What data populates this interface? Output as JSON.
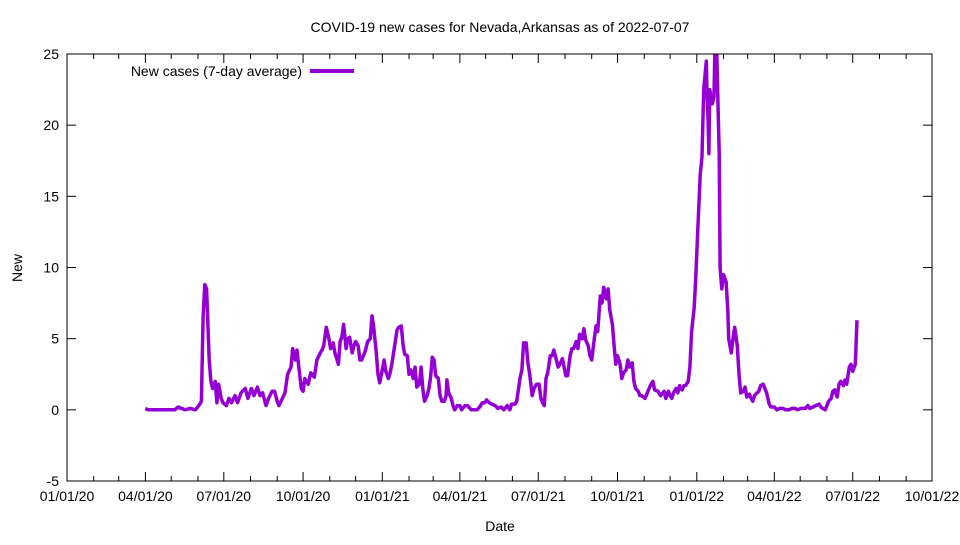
{
  "chart_data": {
    "type": "line",
    "title": "COVID-19 new cases for Nevada,Arkansas as of 2022-07-07",
    "xlabel": "Date",
    "ylabel": "New",
    "x_unit": "days since 01/01/20",
    "xlim": [
      0,
      1004
    ],
    "ylim": [
      -5,
      25
    ],
    "yticks": [
      -5,
      0,
      5,
      10,
      15,
      20,
      25
    ],
    "xticks": [
      {
        "day": 0,
        "label": "01/01/20"
      },
      {
        "day": 91,
        "label": "04/01/20"
      },
      {
        "day": 182,
        "label": "07/01/20"
      },
      {
        "day": 274,
        "label": "10/01/20"
      },
      {
        "day": 366,
        "label": "01/01/21"
      },
      {
        "day": 456,
        "label": "04/01/21"
      },
      {
        "day": 547,
        "label": "07/01/21"
      },
      {
        "day": 639,
        "label": "10/01/21"
      },
      {
        "day": 731,
        "label": "01/01/22"
      },
      {
        "day": 821,
        "label": "04/01/22"
      },
      {
        "day": 912,
        "label": "07/01/22"
      },
      {
        "day": 1004,
        "label": "10/01/22"
      }
    ],
    "grid": false,
    "legend": "top-left",
    "series": [
      {
        "name": "New cases (7-day average)",
        "color": "#9400d3",
        "points": [
          [
            91,
            0.1
          ],
          [
            94,
            0
          ],
          [
            125,
            0
          ],
          [
            129,
            0.2
          ],
          [
            133,
            0.1
          ],
          [
            137,
            0
          ],
          [
            143,
            0.1
          ],
          [
            149,
            0
          ],
          [
            153,
            0.3
          ],
          [
            156,
            0.6
          ],
          [
            158,
            6.5
          ],
          [
            160,
            8.8
          ],
          [
            162,
            8.5
          ],
          [
            165,
            3.5
          ],
          [
            167,
            2
          ],
          [
            169,
            1.5
          ],
          [
            172,
            2
          ],
          [
            174,
            0.5
          ],
          [
            176,
            1.8
          ],
          [
            179,
            0.8
          ],
          [
            181,
            0.5
          ],
          [
            185,
            0.3
          ],
          [
            188,
            0.8
          ],
          [
            191,
            0.5
          ],
          [
            195,
            1
          ],
          [
            198,
            0.5
          ],
          [
            202,
            1.2
          ],
          [
            207,
            1.5
          ],
          [
            210,
            0.8
          ],
          [
            214,
            1.5
          ],
          [
            217,
            1.0
          ],
          [
            221,
            1.6
          ],
          [
            224,
            1.0
          ],
          [
            227,
            1.2
          ],
          [
            231,
            0.3
          ],
          [
            234,
            0.8
          ],
          [
            238,
            1.3
          ],
          [
            241,
            1.3
          ],
          [
            244,
            0.6
          ],
          [
            246,
            0.3
          ],
          [
            250,
            0.8
          ],
          [
            253,
            1.2
          ],
          [
            256,
            2.5
          ],
          [
            260,
            3
          ],
          [
            262,
            4.3
          ],
          [
            265,
            3.5
          ],
          [
            267,
            4.2
          ],
          [
            269,
            3
          ],
          [
            272,
            1.5
          ],
          [
            274,
            1.3
          ],
          [
            276,
            2.2
          ],
          [
            280,
            1.8
          ],
          [
            283,
            2.6
          ],
          [
            287,
            2.3
          ],
          [
            290,
            3.5
          ],
          [
            294,
            4
          ],
          [
            296,
            4.2
          ],
          [
            298,
            4.5
          ],
          [
            301,
            5.8
          ],
          [
            304,
            5
          ],
          [
            306,
            4.3
          ],
          [
            309,
            4.7
          ],
          [
            311,
            4
          ],
          [
            315,
            3.2
          ],
          [
            317,
            4.8
          ],
          [
            319,
            5.1
          ],
          [
            321,
            6
          ],
          [
            324,
            4.3
          ],
          [
            326,
            5
          ],
          [
            328,
            5.1
          ],
          [
            331,
            4
          ],
          [
            333,
            4.5
          ],
          [
            335,
            4.8
          ],
          [
            338,
            4.5
          ],
          [
            340,
            3.5
          ],
          [
            342,
            3.5
          ],
          [
            346,
            4.1
          ],
          [
            349,
            4.8
          ],
          [
            352,
            5
          ],
          [
            354,
            6.6
          ],
          [
            356,
            5.8
          ],
          [
            359,
            4
          ],
          [
            361,
            2.5
          ],
          [
            363,
            1.9
          ],
          [
            366,
            2.8
          ],
          [
            368,
            3.5
          ],
          [
            370,
            2.7
          ],
          [
            373,
            2.2
          ],
          [
            375,
            2.6
          ],
          [
            377,
            3.2
          ],
          [
            381,
            4.8
          ],
          [
            383,
            5.6
          ],
          [
            385,
            5.8
          ],
          [
            388,
            5.9
          ],
          [
            390,
            4.6
          ],
          [
            392,
            3.9
          ],
          [
            395,
            3.8
          ],
          [
            397,
            2.5
          ],
          [
            399,
            2.8
          ],
          [
            402,
            2.2
          ],
          [
            404,
            3
          ],
          [
            406,
            1.6
          ],
          [
            409,
            1.8
          ],
          [
            411,
            3
          ],
          [
            413,
            1.5
          ],
          [
            415,
            0.6
          ],
          [
            418,
            1.0
          ],
          [
            420,
            1.5
          ],
          [
            422,
            2.3
          ],
          [
            424,
            3.7
          ],
          [
            426,
            3.5
          ],
          [
            428,
            2.4
          ],
          [
            431,
            2.2
          ],
          [
            433,
            1.0
          ],
          [
            435,
            0.6
          ],
          [
            438,
            0.6
          ],
          [
            440,
            1.0
          ],
          [
            441,
            2.1
          ],
          [
            443,
            1.2
          ],
          [
            446,
            0.8
          ],
          [
            448,
            0.3
          ],
          [
            450,
            0
          ],
          [
            453,
            0.3
          ],
          [
            456,
            0.3
          ],
          [
            458,
            0
          ],
          [
            462,
            0.3
          ],
          [
            465,
            0.3
          ],
          [
            469,
            0
          ],
          [
            472,
            0
          ],
          [
            476,
            0
          ],
          [
            479,
            0.2
          ],
          [
            482,
            0.5
          ],
          [
            485,
            0.5
          ],
          [
            487,
            0.7
          ],
          [
            490,
            0.5
          ],
          [
            493,
            0.4
          ],
          [
            497,
            0.3
          ],
          [
            500,
            0.1
          ],
          [
            504,
            0.2
          ],
          [
            507,
            0
          ],
          [
            511,
            0.3
          ],
          [
            514,
            0
          ],
          [
            516,
            0.4
          ],
          [
            520,
            0.4
          ],
          [
            522,
            0.6
          ],
          [
            526,
            2.3
          ],
          [
            528,
            2.8
          ],
          [
            530,
            4.7
          ],
          [
            533,
            4.7
          ],
          [
            535,
            3.3
          ],
          [
            537,
            2.5
          ],
          [
            540,
            1.0
          ],
          [
            542,
            1.5
          ],
          [
            545,
            1.8
          ],
          [
            548,
            1.8
          ],
          [
            550,
            0.8
          ],
          [
            552,
            0.5
          ],
          [
            554,
            0.3
          ],
          [
            556,
            2.2
          ],
          [
            558,
            2.6
          ],
          [
            561,
            3.8
          ],
          [
            563,
            3.8
          ],
          [
            565,
            4.2
          ],
          [
            568,
            3.5
          ],
          [
            570,
            3.0
          ],
          [
            572,
            3.2
          ],
          [
            575,
            3.6
          ],
          [
            577,
            3.0
          ],
          [
            579,
            2.4
          ],
          [
            581,
            2.4
          ],
          [
            584,
            3.8
          ],
          [
            586,
            4.3
          ],
          [
            588,
            4.3
          ],
          [
            591,
            4.8
          ],
          [
            593,
            4.3
          ],
          [
            595,
            5.3
          ],
          [
            598,
            5.0
          ],
          [
            600,
            5.7
          ],
          [
            602,
            4.9
          ],
          [
            605,
            4.5
          ],
          [
            607,
            3.8
          ],
          [
            609,
            3.5
          ],
          [
            612,
            5.0
          ],
          [
            614,
            5.9
          ],
          [
            616,
            5.5
          ],
          [
            619,
            8.0
          ],
          [
            621,
            7.5
          ],
          [
            623,
            8.6
          ],
          [
            626,
            7.8
          ],
          [
            628,
            8.5
          ],
          [
            630,
            7.0
          ],
          [
            633,
            6.0
          ],
          [
            635,
            4.5
          ],
          [
            637,
            3.2
          ],
          [
            639,
            3.8
          ],
          [
            642,
            3.2
          ],
          [
            644,
            2.2
          ],
          [
            646,
            2.6
          ],
          [
            649,
            2.8
          ],
          [
            651,
            3.5
          ],
          [
            653,
            3.0
          ],
          [
            656,
            3.3
          ],
          [
            658,
            2.0
          ],
          [
            660,
            1.5
          ],
          [
            663,
            1.3
          ],
          [
            665,
            1.0
          ],
          [
            667,
            1.0
          ],
          [
            671,
            0.8
          ],
          [
            673,
            1.1
          ],
          [
            675,
            1.4
          ],
          [
            678,
            1.8
          ],
          [
            680,
            2.0
          ],
          [
            682,
            1.4
          ],
          [
            686,
            1.3
          ],
          [
            689,
            1.0
          ],
          [
            693,
            1.3
          ],
          [
            695,
            0.8
          ],
          [
            698,
            1.3
          ],
          [
            700,
            1.0
          ],
          [
            702,
            0.8
          ],
          [
            704,
            1.2
          ],
          [
            707,
            1.5
          ],
          [
            709,
            1.2
          ],
          [
            711,
            1.7
          ],
          [
            714,
            1.4
          ],
          [
            716,
            1.7
          ],
          [
            718,
            1.7
          ],
          [
            721,
            2.0
          ],
          [
            723,
            3.0
          ],
          [
            725,
            5.5
          ],
          [
            728,
            7.2
          ],
          [
            730,
            9.5
          ],
          [
            732,
            12.5
          ],
          [
            735,
            16.5
          ],
          [
            737,
            17.8
          ],
          [
            739,
            22.5
          ],
          [
            742,
            24.5
          ],
          [
            743,
            22.0
          ],
          [
            744,
            20.5
          ],
          [
            745,
            18.0
          ],
          [
            746,
            22.5
          ],
          [
            749,
            21.5
          ],
          [
            751,
            22
          ],
          [
            752,
            25.5
          ],
          [
            754,
            25.5
          ],
          [
            757,
            18
          ],
          [
            758,
            10
          ],
          [
            760,
            8.5
          ],
          [
            762,
            9.5
          ],
          [
            765,
            9
          ],
          [
            767,
            7
          ],
          [
            768,
            5
          ],
          [
            771,
            4
          ],
          [
            773,
            5
          ],
          [
            775,
            5.8
          ],
          [
            778,
            4.5
          ],
          [
            780,
            2.5
          ],
          [
            782,
            1.2
          ],
          [
            785,
            1.3
          ],
          [
            787,
            1.6
          ],
          [
            789,
            0.9
          ],
          [
            792,
            1.1
          ],
          [
            794,
            0.8
          ],
          [
            796,
            0.6
          ],
          [
            798,
            1.0
          ],
          [
            801,
            1.2
          ],
          [
            803,
            1.3
          ],
          [
            805,
            1.7
          ],
          [
            808,
            1.8
          ],
          [
            810,
            1.5
          ],
          [
            812,
            1.2
          ],
          [
            815,
            0.4
          ],
          [
            817,
            0.2
          ],
          [
            821,
            0.2
          ],
          [
            824,
            0
          ],
          [
            827,
            0.1
          ],
          [
            831,
            0.1
          ],
          [
            834,
            0
          ],
          [
            838,
            0
          ],
          [
            841,
            0.1
          ],
          [
            845,
            0.1
          ],
          [
            848,
            0
          ],
          [
            852,
            0.1
          ],
          [
            857,
            0.1
          ],
          [
            860,
            0.3
          ],
          [
            862,
            0.1
          ],
          [
            866,
            0.2
          ],
          [
            869,
            0.3
          ],
          [
            873,
            0.4
          ],
          [
            875,
            0.2
          ],
          [
            877,
            0.1
          ],
          [
            880,
            0
          ],
          [
            882,
            0.3
          ],
          [
            884,
            0.6
          ],
          [
            887,
            0.8
          ],
          [
            889,
            1.3
          ],
          [
            891,
            1.4
          ],
          [
            894,
            0.9
          ],
          [
            896,
            1.8
          ],
          [
            898,
            2.0
          ],
          [
            901,
            1.7
          ],
          [
            903,
            2.1
          ],
          [
            905,
            1.8
          ],
          [
            908,
            3.0
          ],
          [
            910,
            3.2
          ],
          [
            912,
            2.7
          ],
          [
            915,
            3.2
          ],
          [
            917,
            6.3
          ]
        ]
      }
    ]
  }
}
